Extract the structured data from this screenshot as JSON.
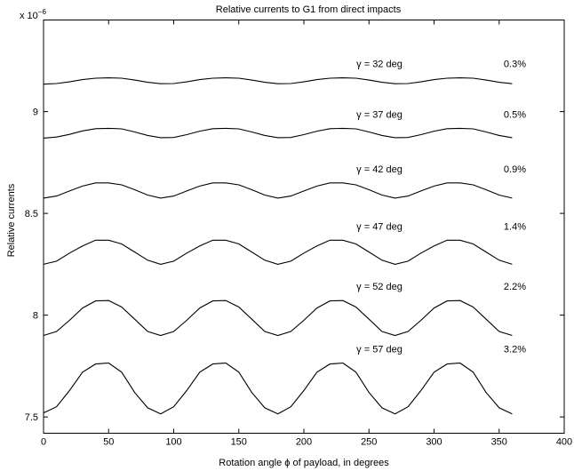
{
  "chart_data": {
    "type": "line",
    "title": "Relative currents to G1 from direct impacts",
    "xlabel": "Rotation angle ϕ of payload, in degrees",
    "ylabel": "Relative currents",
    "y_multiplier_label": "x 10",
    "y_multiplier_exponent": "−6",
    "xlim": [
      0,
      400
    ],
    "ylim": [
      7.42,
      9.45
    ],
    "xticks": [
      "0",
      "50",
      "100",
      "150",
      "200",
      "250",
      "300",
      "350",
      "400"
    ],
    "yticks": [
      "7.5",
      "8",
      "8.5",
      "9"
    ],
    "grid": false,
    "legend": "none",
    "x": [
      0,
      10,
      20,
      30,
      40,
      50,
      60,
      70,
      80,
      90,
      100,
      110,
      120,
      130,
      140,
      150,
      160,
      170,
      180,
      190,
      200,
      210,
      220,
      230,
      240,
      250,
      260,
      270,
      280,
      290,
      300,
      310,
      320,
      330,
      340,
      350,
      360
    ],
    "series": [
      {
        "gamma_label": "γ = 32 deg",
        "percent_label": "0.3%",
        "values": [
          9.135,
          9.138,
          9.146,
          9.157,
          9.164,
          9.166,
          9.164,
          9.155,
          9.144,
          9.137,
          9.138,
          9.146,
          9.157,
          9.164,
          9.166,
          9.164,
          9.155,
          9.144,
          9.137,
          9.138,
          9.146,
          9.157,
          9.164,
          9.166,
          9.164,
          9.155,
          9.144,
          9.137,
          9.138,
          9.146,
          9.157,
          9.164,
          9.166,
          9.164,
          9.155,
          9.144,
          9.137
        ]
      },
      {
        "gamma_label": "γ = 37 deg",
        "percent_label": "0.5%",
        "values": [
          8.87,
          8.875,
          8.888,
          8.905,
          8.916,
          8.918,
          8.915,
          8.9,
          8.883,
          8.872,
          8.873,
          8.887,
          8.904,
          8.916,
          8.918,
          8.915,
          8.9,
          8.883,
          8.872,
          8.873,
          8.887,
          8.904,
          8.916,
          8.918,
          8.915,
          8.9,
          8.883,
          8.872,
          8.873,
          8.887,
          8.904,
          8.916,
          8.918,
          8.915,
          8.9,
          8.883,
          8.872
        ]
      },
      {
        "gamma_label": "γ = 42 deg",
        "percent_label": "0.9%",
        "values": [
          8.575,
          8.585,
          8.61,
          8.634,
          8.65,
          8.65,
          8.64,
          8.616,
          8.59,
          8.575,
          8.585,
          8.61,
          8.634,
          8.65,
          8.65,
          8.64,
          8.616,
          8.59,
          8.575,
          8.585,
          8.61,
          8.634,
          8.65,
          8.65,
          8.64,
          8.616,
          8.59,
          8.575,
          8.585,
          8.61,
          8.634,
          8.65,
          8.65,
          8.64,
          8.616,
          8.59,
          8.575
        ]
      },
      {
        "gamma_label": "γ = 47 deg",
        "percent_label": "1.4%",
        "values": [
          8.25,
          8.265,
          8.305,
          8.34,
          8.368,
          8.368,
          8.35,
          8.31,
          8.27,
          8.25,
          8.265,
          8.305,
          8.34,
          8.368,
          8.368,
          8.35,
          8.31,
          8.27,
          8.25,
          8.265,
          8.305,
          8.34,
          8.368,
          8.368,
          8.35,
          8.31,
          8.27,
          8.25,
          8.265,
          8.305,
          8.34,
          8.368,
          8.368,
          8.35,
          8.31,
          8.27,
          8.25
        ]
      },
      {
        "gamma_label": "γ = 52 deg",
        "percent_label": "2.2%",
        "values": [
          7.9,
          7.92,
          7.975,
          8.035,
          8.07,
          8.072,
          8.04,
          7.98,
          7.92,
          7.9,
          7.92,
          7.975,
          8.035,
          8.07,
          8.072,
          8.04,
          7.98,
          7.92,
          7.9,
          7.92,
          7.975,
          8.035,
          8.07,
          8.072,
          8.04,
          7.98,
          7.92,
          7.9,
          7.92,
          7.975,
          8.035,
          8.07,
          8.072,
          8.04,
          7.98,
          7.92,
          7.9
        ]
      },
      {
        "gamma_label": "γ = 57 deg",
        "percent_label": "3.2%",
        "values": [
          7.52,
          7.55,
          7.63,
          7.72,
          7.76,
          7.765,
          7.72,
          7.62,
          7.545,
          7.515,
          7.55,
          7.63,
          7.72,
          7.76,
          7.765,
          7.72,
          7.62,
          7.545,
          7.515,
          7.55,
          7.63,
          7.72,
          7.76,
          7.765,
          7.72,
          7.62,
          7.545,
          7.515,
          7.55,
          7.63,
          7.72,
          7.76,
          7.765,
          7.72,
          7.62,
          7.545,
          7.515
        ]
      }
    ]
  }
}
